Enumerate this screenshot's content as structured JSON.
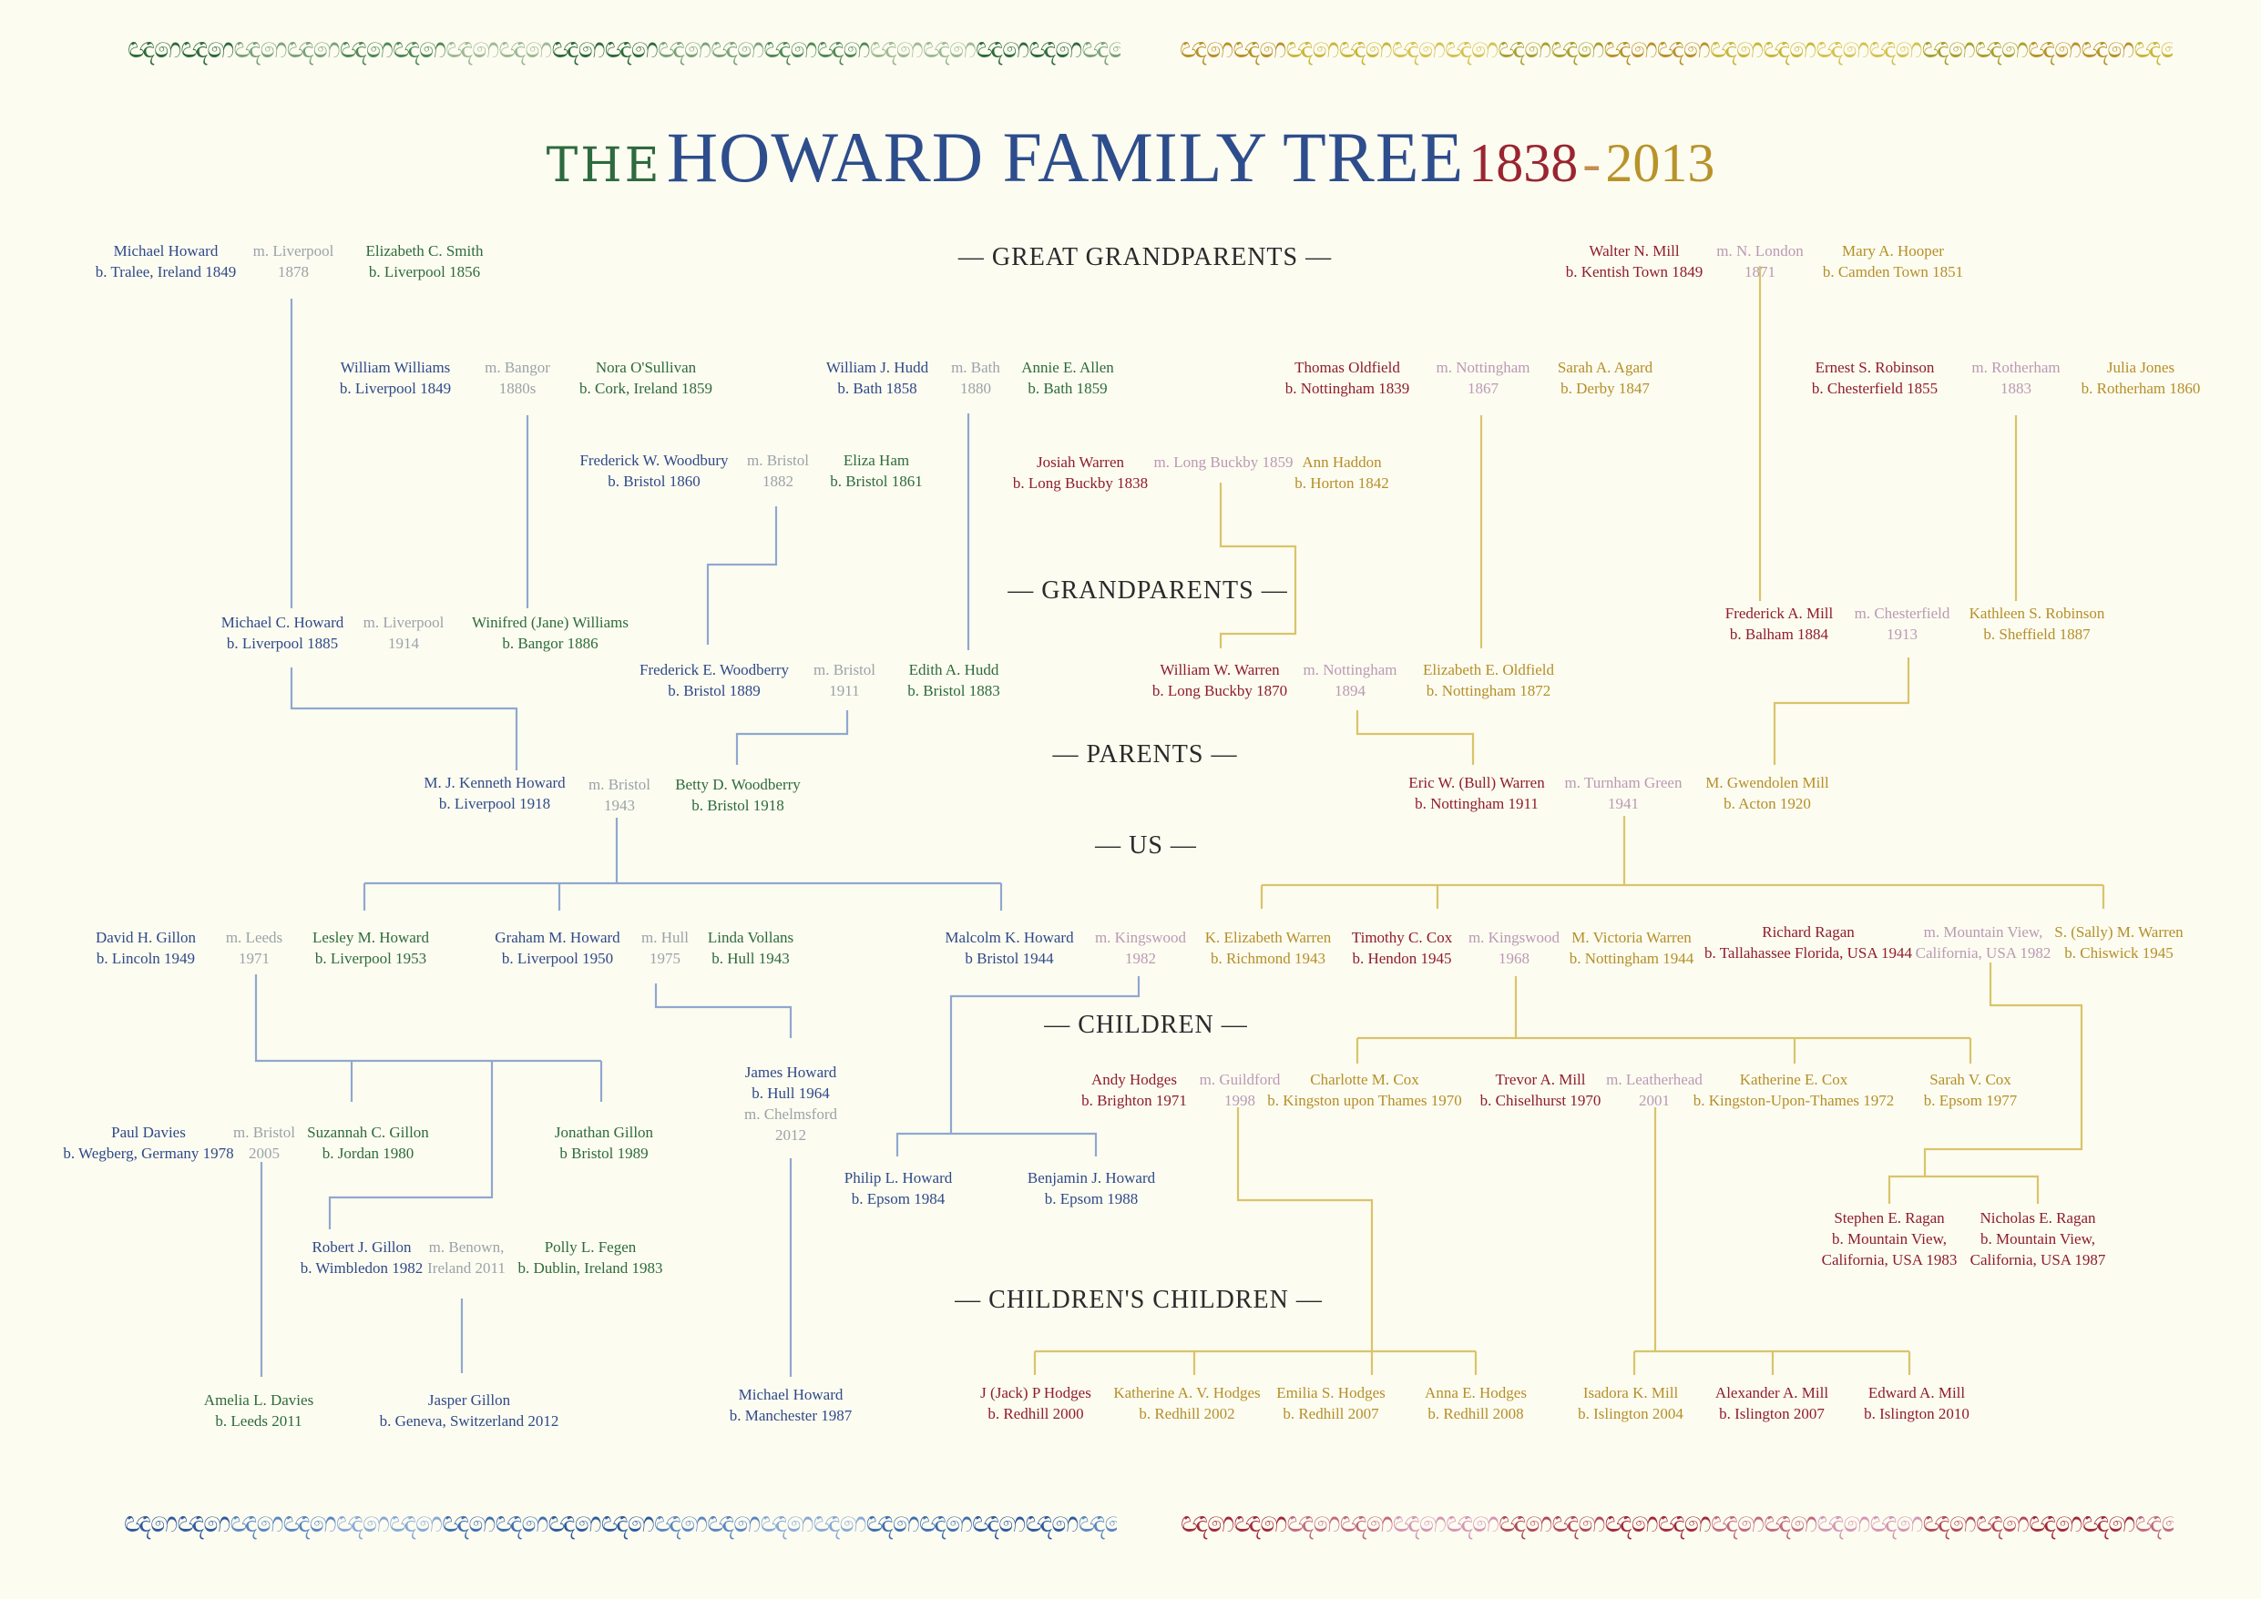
{
  "title": {
    "the": "THE",
    "main": "HOWARD FAMILY TREE",
    "year_start": "1838",
    "dash": "-",
    "year_end": "2013"
  },
  "generations": {
    "great_grandparents": "— GREAT GRANDPARENTS —",
    "grandparents": "— GRANDPARENTS —",
    "parents": "— PARENTS —",
    "us": "— US —",
    "children": "— CHILDREN —",
    "childrens_children": "— CHILDREN'S CHILDREN —"
  },
  "colors": {
    "blue": "#2e4a88",
    "green": "#2d6b3a",
    "red": "#8e1d2a",
    "gold": "#b48f28",
    "grey": "#9aa3a8",
    "mauve": "#b99ab4",
    "line_blue": "#8fa8cf",
    "line_gold": "#d9c46a"
  },
  "people": [
    {
      "id": "michael-howard",
      "name": "Michael Howard",
      "detail": "b. Tralee, Ireland 1849",
      "color": "blue"
    },
    {
      "id": "m-liverpool-1878",
      "name": "m. Liverpool",
      "detail": "1878",
      "color": "grey"
    },
    {
      "id": "elizabeth-c-smith",
      "name": "Elizabeth C. Smith",
      "detail": "b. Liverpool 1856",
      "color": "green"
    },
    {
      "id": "walter-n-mill",
      "name": "Walter N. Mill",
      "detail": "b. Kentish Town 1849",
      "color": "red"
    },
    {
      "id": "m-n-london-1871",
      "name": "m. N. London",
      "detail": "1871",
      "color": "mauve"
    },
    {
      "id": "mary-a-hooper",
      "name": "Mary A. Hooper",
      "detail": "b. Camden Town 1851",
      "color": "gold"
    },
    {
      "id": "william-williams",
      "name": "William Williams",
      "detail": "b. Liverpool 1849",
      "color": "blue"
    },
    {
      "id": "m-bangor-1880s",
      "name": "m. Bangor",
      "detail": "1880s",
      "color": "grey"
    },
    {
      "id": "nora-osullivan",
      "name": "Nora O'Sullivan",
      "detail": "b. Cork, Ireland 1859",
      "color": "green"
    },
    {
      "id": "william-j-hudd",
      "name": "William J. Hudd",
      "detail": "b. Bath 1858",
      "color": "blue"
    },
    {
      "id": "m-bath-1880",
      "name": "m. Bath",
      "detail": "1880",
      "color": "grey"
    },
    {
      "id": "annie-e-allen",
      "name": "Annie E. Allen",
      "detail": "b. Bath 1859",
      "color": "green"
    },
    {
      "id": "thomas-oldfield",
      "name": "Thomas Oldfield",
      "detail": "b. Nottingham 1839",
      "color": "red"
    },
    {
      "id": "m-nottingham-1867",
      "name": "m. Nottingham",
      "detail": "1867",
      "color": "mauve"
    },
    {
      "id": "sarah-a-agard",
      "name": "Sarah A. Agard",
      "detail": "b. Derby 1847",
      "color": "gold"
    },
    {
      "id": "ernest-s-robinson",
      "name": "Ernest S. Robinson",
      "detail": "b. Chesterfield 1855",
      "color": "red"
    },
    {
      "id": "m-rotherham-1883",
      "name": "m. Rotherham",
      "detail": "1883",
      "color": "mauve"
    },
    {
      "id": "julia-jones",
      "name": "Julia Jones",
      "detail": "b. Rotherham 1860",
      "color": "gold"
    },
    {
      "id": "frederick-w-woodbury",
      "name": "Frederick W. Woodbury",
      "detail": "b. Bristol 1860",
      "color": "blue"
    },
    {
      "id": "m-bristol-1882",
      "name": "m. Bristol",
      "detail": "1882",
      "color": "grey"
    },
    {
      "id": "eliza-ham",
      "name": "Eliza Ham",
      "detail": "b. Bristol 1861",
      "color": "green"
    },
    {
      "id": "josiah-warren",
      "name": "Josiah Warren",
      "detail": "b. Long Buckby 1838",
      "color": "red"
    },
    {
      "id": "m-long-buckby-1859",
      "name": "m. Long Buckby 1859",
      "detail": "",
      "color": "mauve"
    },
    {
      "id": "ann-haddon",
      "name": "Ann Haddon",
      "detail": "b. Horton 1842",
      "color": "gold"
    },
    {
      "id": "michael-c-howard",
      "name": "Michael C. Howard",
      "detail": "b. Liverpool 1885",
      "color": "blue"
    },
    {
      "id": "m-liverpool-1914",
      "name": "m. Liverpool",
      "detail": "1914",
      "color": "grey"
    },
    {
      "id": "winifred-williams",
      "name": "Winifred (Jane) Williams",
      "detail": "b. Bangor 1886",
      "color": "green"
    },
    {
      "id": "frederick-a-mill",
      "name": "Frederick A. Mill",
      "detail": "b. Balham 1884",
      "color": "red"
    },
    {
      "id": "m-chesterfield-1913",
      "name": "m. Chesterfield",
      "detail": "1913",
      "color": "mauve"
    },
    {
      "id": "kathleen-s-robinson",
      "name": "Kathleen S. Robinson",
      "detail": "b. Sheffield 1887",
      "color": "gold"
    },
    {
      "id": "frederick-e-woodberry",
      "name": "Frederick E. Woodberry",
      "detail": "b. Bristol 1889",
      "color": "blue"
    },
    {
      "id": "m-bristol-1911",
      "name": "m. Bristol",
      "detail": "1911",
      "color": "grey"
    },
    {
      "id": "edith-a-hudd",
      "name": "Edith A. Hudd",
      "detail": "b. Bristol 1883",
      "color": "green"
    },
    {
      "id": "william-w-warren",
      "name": "William W. Warren",
      "detail": "b. Long Buckby 1870",
      "color": "red"
    },
    {
      "id": "m-nottingham-1894",
      "name": "m. Nottingham",
      "detail": "1894",
      "color": "mauve"
    },
    {
      "id": "elizabeth-e-oldfield",
      "name": "Elizabeth E. Oldfield",
      "detail": "b. Nottingham 1872",
      "color": "gold"
    },
    {
      "id": "m-j-kenneth-howard",
      "name": "M. J. Kenneth Howard",
      "detail": "b. Liverpool 1918",
      "color": "blue"
    },
    {
      "id": "m-bristol-1943",
      "name": "m. Bristol",
      "detail": "1943",
      "color": "grey"
    },
    {
      "id": "betty-d-woodberry",
      "name": "Betty D. Woodberry",
      "detail": "b. Bristol 1918",
      "color": "green"
    },
    {
      "id": "eric-w-warren",
      "name": "Eric W. (Bull) Warren",
      "detail": "b. Nottingham 1911",
      "color": "red"
    },
    {
      "id": "m-turnham-green-1941",
      "name": "m. Turnham Green",
      "detail": "1941",
      "color": "mauve"
    },
    {
      "id": "m-gwendolen-mill",
      "name": "M. Gwendolen Mill",
      "detail": "b. Acton 1920",
      "color": "gold"
    },
    {
      "id": "david-h-gillon",
      "name": "David H. Gillon",
      "detail": "b. Lincoln 1949",
      "color": "blue"
    },
    {
      "id": "m-leeds-1971",
      "name": "m. Leeds",
      "detail": "1971",
      "color": "grey"
    },
    {
      "id": "lesley-m-howard",
      "name": "Lesley M. Howard",
      "detail": "b. Liverpool 1953",
      "color": "green"
    },
    {
      "id": "graham-m-howard",
      "name": "Graham M. Howard",
      "detail": "b. Liverpool 1950",
      "color": "blue"
    },
    {
      "id": "m-hull-1975",
      "name": "m. Hull",
      "detail": "1975",
      "color": "grey"
    },
    {
      "id": "linda-vollans",
      "name": "Linda Vollans",
      "detail": "b. Hull 1943",
      "color": "green"
    },
    {
      "id": "malcolm-k-howard",
      "name": "Malcolm K. Howard",
      "detail": "b Bristol 1944",
      "color": "blue"
    },
    {
      "id": "m-kingswood-1982",
      "name": "m. Kingswood",
      "detail": "1982",
      "color": "mauve"
    },
    {
      "id": "k-elizabeth-warren",
      "name": "K. Elizabeth Warren",
      "detail": "b. Richmond 1943",
      "color": "gold"
    },
    {
      "id": "timothy-c-cox",
      "name": "Timothy C. Cox",
      "detail": "b. Hendon 1945",
      "color": "red"
    },
    {
      "id": "m-kingswood-1968",
      "name": "m. Kingswood",
      "detail": "1968",
      "color": "mauve"
    },
    {
      "id": "m-victoria-warren",
      "name": "M. Victoria Warren",
      "detail": "b. Nottingham 1944",
      "color": "gold"
    },
    {
      "id": "richard-ragan",
      "name": "Richard Ragan",
      "detail": "b. Tallahassee Florida, USA 1944",
      "color": "red"
    },
    {
      "id": "m-mountain-view-1982",
      "name": "m. Mountain View,",
      "detail": "California, USA 1982",
      "color": "mauve"
    },
    {
      "id": "s-sally-m-warren",
      "name": "S. (Sally) M. Warren",
      "detail": "b. Chiswick 1945",
      "color": "gold"
    },
    {
      "id": "james-howard",
      "name": "James Howard",
      "detail": "b. Hull 1964",
      "color": "blue"
    },
    {
      "id": "m-chelmsford-2012",
      "name": "m. Chelmsford",
      "detail": "2012",
      "color": "grey"
    },
    {
      "id": "andy-hodges",
      "name": "Andy Hodges",
      "detail": "b. Brighton 1971",
      "color": "red"
    },
    {
      "id": "m-guildford-1998",
      "name": "m. Guildford",
      "detail": "1998",
      "color": "mauve"
    },
    {
      "id": "charlotte-m-cox",
      "name": "Charlotte M. Cox",
      "detail": "b. Kingston upon Thames 1970",
      "color": "gold"
    },
    {
      "id": "trevor-a-mill",
      "name": "Trevor A. Mill",
      "detail": "b. Chiselhurst 1970",
      "color": "red"
    },
    {
      "id": "m-leatherhead-2001",
      "name": "m. Leatherhead",
      "detail": "2001",
      "color": "mauve"
    },
    {
      "id": "katherine-e-cox",
      "name": "Katherine E. Cox",
      "detail": "b. Kingston-Upon-Thames 1972",
      "color": "gold"
    },
    {
      "id": "sarah-v-cox",
      "name": "Sarah V. Cox",
      "detail": "b. Epsom 1977",
      "color": "gold"
    },
    {
      "id": "paul-davies",
      "name": "Paul Davies",
      "detail": "b. Wegberg, Germany 1978",
      "color": "blue"
    },
    {
      "id": "m-bristol-2005",
      "name": "m. Bristol",
      "detail": "2005",
      "color": "grey"
    },
    {
      "id": "suzannah-c-gillon",
      "name": "Suzannah C. Gillon",
      "detail": "b. Jordan 1980",
      "color": "green"
    },
    {
      "id": "jonathan-gillon",
      "name": "Jonathan Gillon",
      "detail": "b Bristol 1989",
      "color": "green"
    },
    {
      "id": "philip-l-howard",
      "name": "Philip L. Howard",
      "detail": "b. Epsom 1984",
      "color": "blue"
    },
    {
      "id": "benjamin-j-howard",
      "name": "Benjamin J. Howard",
      "detail": "b. Epsom 1988",
      "color": "blue"
    },
    {
      "id": "stephen-e-ragan",
      "name": "Stephen E. Ragan",
      "detail": "b. Mountain View,",
      "detail2": "California, USA 1983",
      "color": "red"
    },
    {
      "id": "nicholas-e-ragan",
      "name": "Nicholas E. Ragan",
      "detail": "b. Mountain View,",
      "detail2": "California, USA 1987",
      "color": "red"
    },
    {
      "id": "robert-j-gillon",
      "name": "Robert J. Gillon",
      "detail": "b. Wimbledon 1982",
      "color": "blue"
    },
    {
      "id": "m-benown-2011",
      "name": "m. Benown,",
      "detail": "Ireland 2011",
      "color": "grey"
    },
    {
      "id": "polly-l-fegen",
      "name": "Polly L. Fegen",
      "detail": "b. Dublin, Ireland 1983",
      "color": "green"
    },
    {
      "id": "amelia-l-davies",
      "name": "Amelia L. Davies",
      "detail": "b. Leeds 2011",
      "color": "green"
    },
    {
      "id": "jasper-gillon",
      "name": "Jasper Gillon",
      "detail": "b. Geneva, Switzerland 2012",
      "color": "blue"
    },
    {
      "id": "michael-howard-1987",
      "name": "Michael Howard",
      "detail": "b. Manchester 1987",
      "color": "blue"
    },
    {
      "id": "j-jack-p-hodges",
      "name": "J (Jack) P Hodges",
      "detail": "b. Redhill 2000",
      "color": "red"
    },
    {
      "id": "katherine-a-v-hodges",
      "name": "Katherine A. V. Hodges",
      "detail": "b. Redhill 2002",
      "color": "gold"
    },
    {
      "id": "emilia-s-hodges",
      "name": "Emilia S. Hodges",
      "detail": "b. Redhill 2007",
      "color": "gold"
    },
    {
      "id": "anna-e-hodges",
      "name": "Anna E. Hodges",
      "detail": "b. Redhill 2008",
      "color": "gold"
    },
    {
      "id": "isadora-k-mill",
      "name": "Isadora K. Mill",
      "detail": "b. Islington 2004",
      "color": "gold"
    },
    {
      "id": "alexander-a-mill",
      "name": "Alexander A. Mill",
      "detail": "b. Islington 2007",
      "color": "red"
    },
    {
      "id": "edward-a-mill",
      "name": "Edward A. Mill",
      "detail": "b. Islington 2010",
      "color": "red"
    }
  ]
}
